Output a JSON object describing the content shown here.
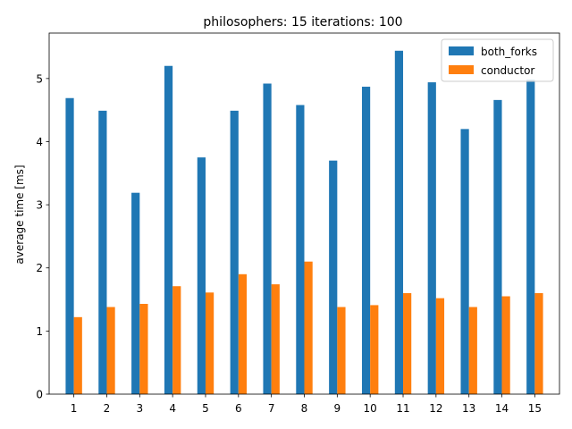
{
  "chart_data": {
    "type": "bar",
    "title": "philosophers: 15   iterations: 100",
    "xlabel": "",
    "ylabel": "average time [ms]",
    "categories": [
      "1",
      "2",
      "3",
      "4",
      "5",
      "6",
      "7",
      "8",
      "9",
      "10",
      "11",
      "12",
      "13",
      "14",
      "15"
    ],
    "series": [
      {
        "name": "both_forks",
        "color": "#1f77b4",
        "values": [
          4.69,
          4.49,
          3.19,
          5.2,
          3.75,
          4.49,
          4.92,
          4.58,
          3.7,
          4.87,
          5.44,
          4.94,
          4.2,
          4.66,
          4.98
        ]
      },
      {
        "name": "conductor",
        "color": "#ff7f0e",
        "values": [
          1.22,
          1.38,
          1.43,
          1.71,
          1.61,
          1.9,
          1.74,
          2.1,
          1.38,
          1.41,
          1.6,
          1.52,
          1.38,
          1.55,
          1.6
        ]
      }
    ],
    "ylim": [
      0,
      5.72
    ],
    "yticks": [
      "0",
      "1",
      "2",
      "3",
      "4",
      "5"
    ],
    "legend": "top-right",
    "grid": false
  }
}
